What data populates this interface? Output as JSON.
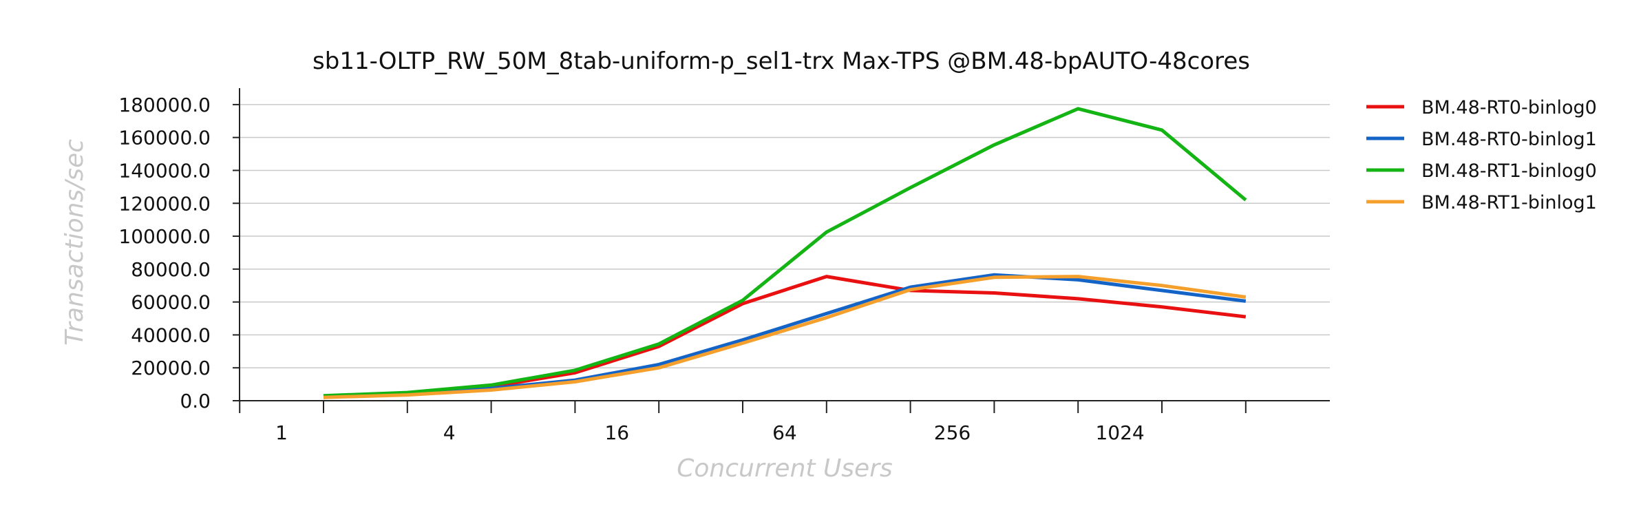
{
  "chart_data": {
    "type": "line",
    "title": "sb11-OLTP_RW_50M_8tab-uniform-p_sel1-trx Max-TPS @BM.48-bpAUTO-48cores",
    "xlabel": "Concurrent Users",
    "ylabel": "Transactions/sec",
    "x_scale": "log2",
    "x": [
      1,
      2,
      4,
      8,
      16,
      32,
      64,
      128,
      256,
      512,
      1024,
      2048
    ],
    "x_tick_labels": [
      "1",
      "4",
      "16",
      "64",
      "256",
      "1024"
    ],
    "y_ticks": [
      "0.0",
      "20000.0",
      "40000.0",
      "60000.0",
      "80000.0",
      "100000.0",
      "120000.0",
      "140000.0",
      "160000.0",
      "180000.0"
    ],
    "ylim": [
      0,
      190000
    ],
    "grid": true,
    "legend_position": "right",
    "series": [
      {
        "name": "BM.48-RT0-binlog0",
        "color": "#e81010",
        "values": [
          2800,
          4800,
          8500,
          17000,
          33000,
          59000,
          75500,
          67000,
          65500,
          62000,
          57000,
          51000
        ]
      },
      {
        "name": "BM.48-RT0-binlog1",
        "color": "#1464c8",
        "values": [
          2200,
          4000,
          7500,
          12500,
          22000,
          37000,
          53000,
          69000,
          76500,
          73500,
          67000,
          60500
        ]
      },
      {
        "name": "BM.48-RT1-binlog0",
        "color": "#14b414",
        "values": [
          3000,
          5000,
          9500,
          18500,
          34500,
          61000,
          102500,
          129500,
          155500,
          177500,
          164500,
          122000
        ]
      },
      {
        "name": "BM.48-RT1-binlog1",
        "color": "#f5a02d",
        "values": [
          2000,
          3500,
          6500,
          11500,
          20000,
          35000,
          50500,
          67500,
          75000,
          75500,
          70000,
          63000
        ]
      }
    ]
  }
}
